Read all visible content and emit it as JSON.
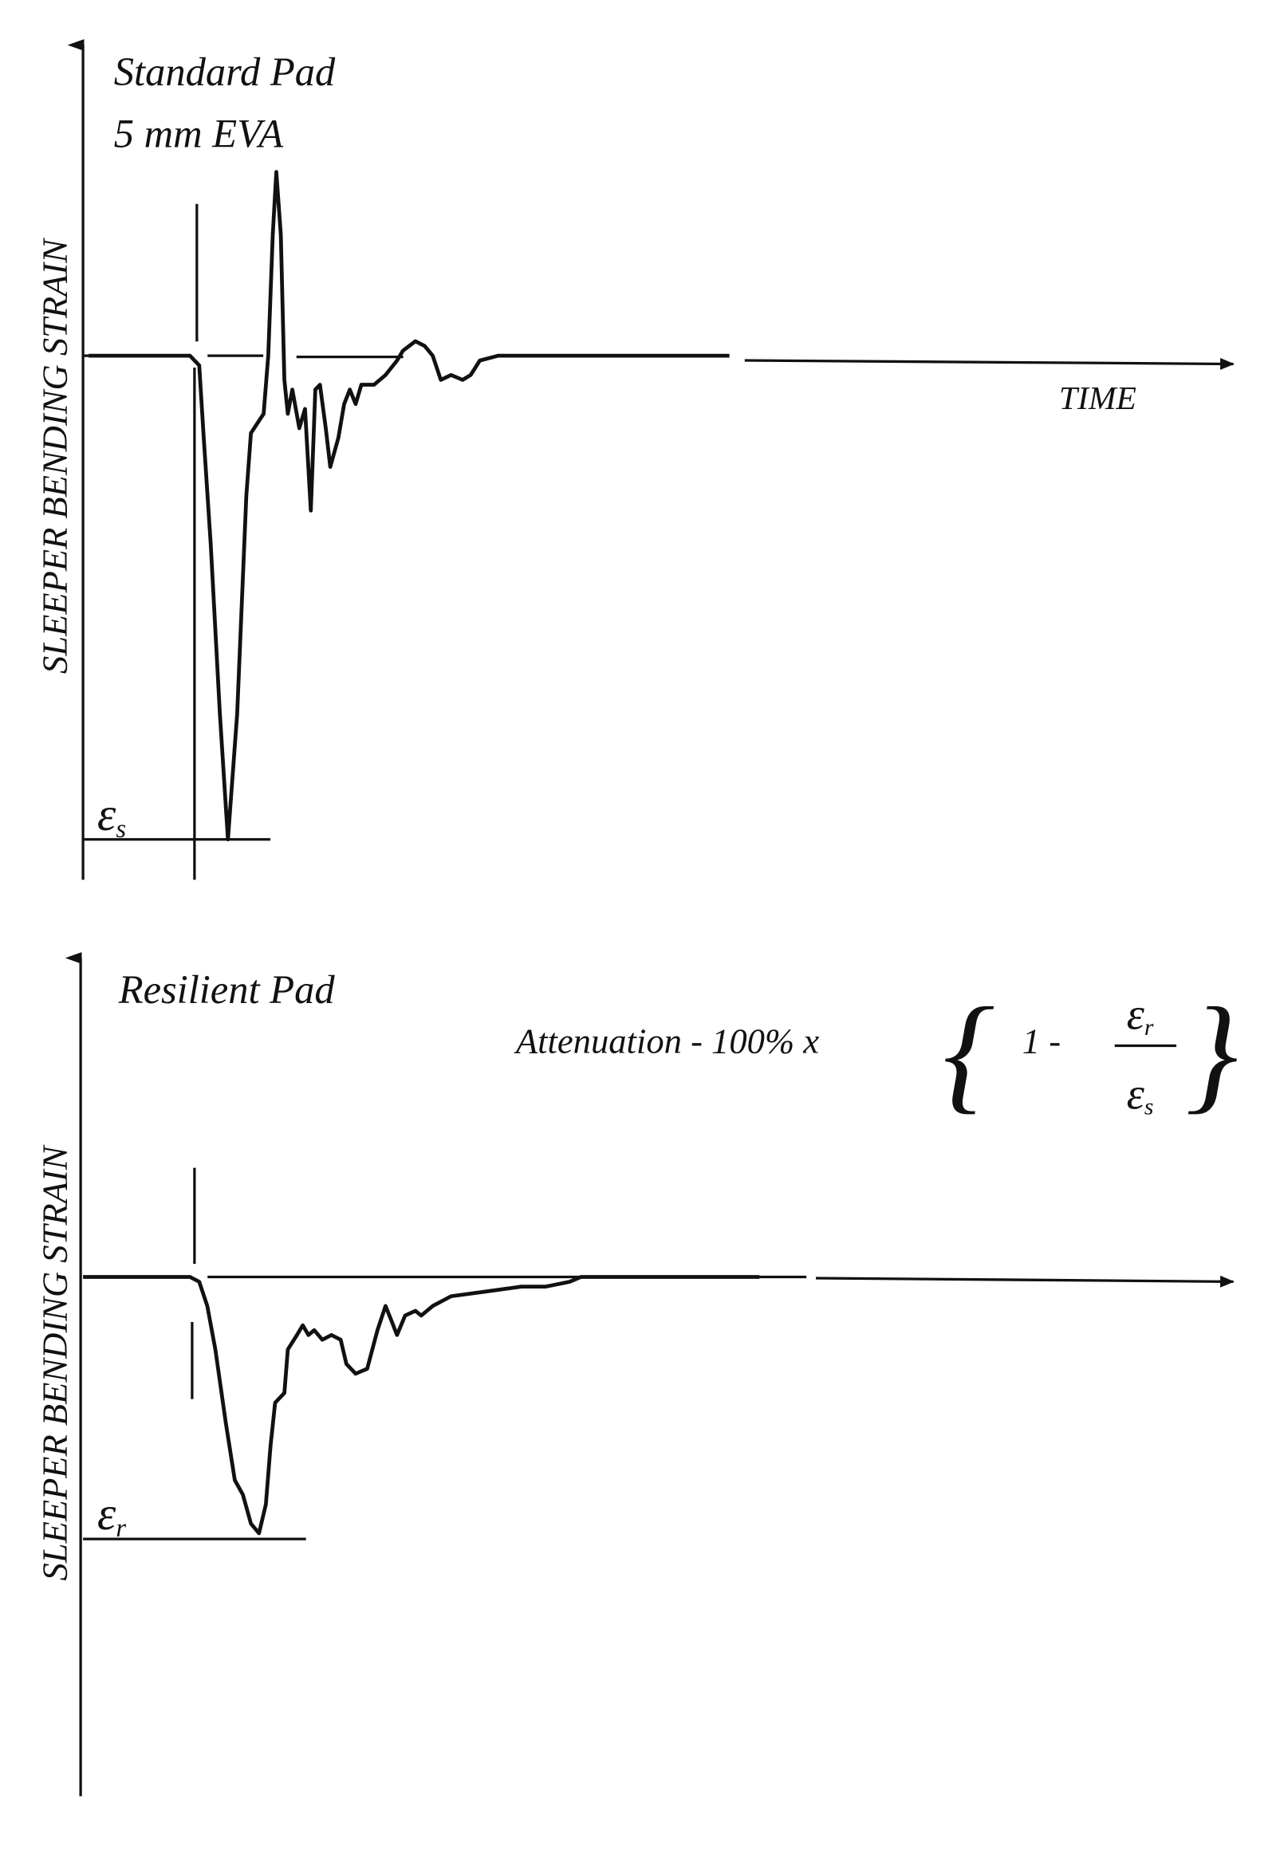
{
  "chart_data": [
    {
      "type": "line",
      "title": "Standard Pad",
      "subtitle": "5 mm EVA",
      "xlabel": "TIME",
      "ylabel": "SLEEPER BENDING STRAIN",
      "peak_label": "ε",
      "peak_label_sub": "s",
      "grid": false,
      "x": [
        0.5,
        9.3,
        10.1,
        10.5,
        11.1,
        11.9,
        12.6,
        13.4,
        14.2,
        14.6,
        15.7,
        16.1,
        16.5,
        16.8,
        17.2,
        17.5,
        17.8,
        18.2,
        18.8,
        19.3,
        19.8,
        20.2,
        20.6,
        21.1,
        21.5,
        22.2,
        22.7,
        23.2,
        23.7,
        24.2,
        25.3,
        26.3,
        27.3,
        27.8,
        28.9,
        29.7,
        30.4,
        31.1,
        32.0,
        33.0,
        33.7,
        34.5,
        36.1,
        56.2
      ],
      "y": [
        0,
        0,
        -0.02,
        -0.17,
        -0.39,
        -0.74,
        -1.0,
        -0.74,
        -0.29,
        -0.16,
        -0.12,
        0,
        0.25,
        0.38,
        0.25,
        -0.05,
        -0.12,
        -0.07,
        -0.15,
        -0.11,
        -0.32,
        -0.07,
        -0.06,
        -0.15,
        -0.23,
        -0.17,
        -0.1,
        -0.07,
        -0.1,
        -0.06,
        -0.06,
        -0.04,
        -0.01,
        0.01,
        0.03,
        0.02,
        0,
        -0.05,
        -0.04,
        -0.05,
        -0.04,
        -0.01,
        0,
        0
      ]
    },
    {
      "type": "line",
      "title": "Resilient Pad",
      "ylabel": "SLEEPER BENDING STRAIN",
      "peak_label": "ε",
      "peak_label_sub": "r",
      "formula": {
        "prefix": "Attenuation - 100% x",
        "one_minus": "1 -",
        "numerator": "ε",
        "numerator_sub": "r",
        "denominator": "ε",
        "denominator_sub": "s"
      },
      "grid": false,
      "x": [
        0,
        9.3,
        10.1,
        10.8,
        11.5,
        12.4,
        13.2,
        13.9,
        14.6,
        15.3,
        15.9,
        16.3,
        16.7,
        17.5,
        17.8,
        18.6,
        19.1,
        19.6,
        20.1,
        20.8,
        21.6,
        22.4,
        22.9,
        23.7,
        24.7,
        25.6,
        26.3,
        26.8,
        27.3,
        28.0,
        28.9,
        29.4,
        30.4,
        32.0,
        35.1,
        38.1,
        40.2,
        42.3,
        43.3,
        58.8
      ],
      "y": [
        0,
        0,
        -0.01,
        -0.06,
        -0.15,
        -0.3,
        -0.42,
        -0.45,
        -0.51,
        -0.53,
        -0.47,
        -0.35,
        -0.26,
        -0.24,
        -0.15,
        -0.12,
        -0.1,
        -0.12,
        -0.11,
        -0.13,
        -0.12,
        -0.13,
        -0.18,
        -0.2,
        -0.19,
        -0.11,
        -0.06,
        -0.09,
        -0.12,
        -0.08,
        -0.07,
        -0.08,
        -0.06,
        -0.04,
        -0.03,
        -0.02,
        -0.02,
        -0.01,
        0,
        0
      ]
    }
  ]
}
